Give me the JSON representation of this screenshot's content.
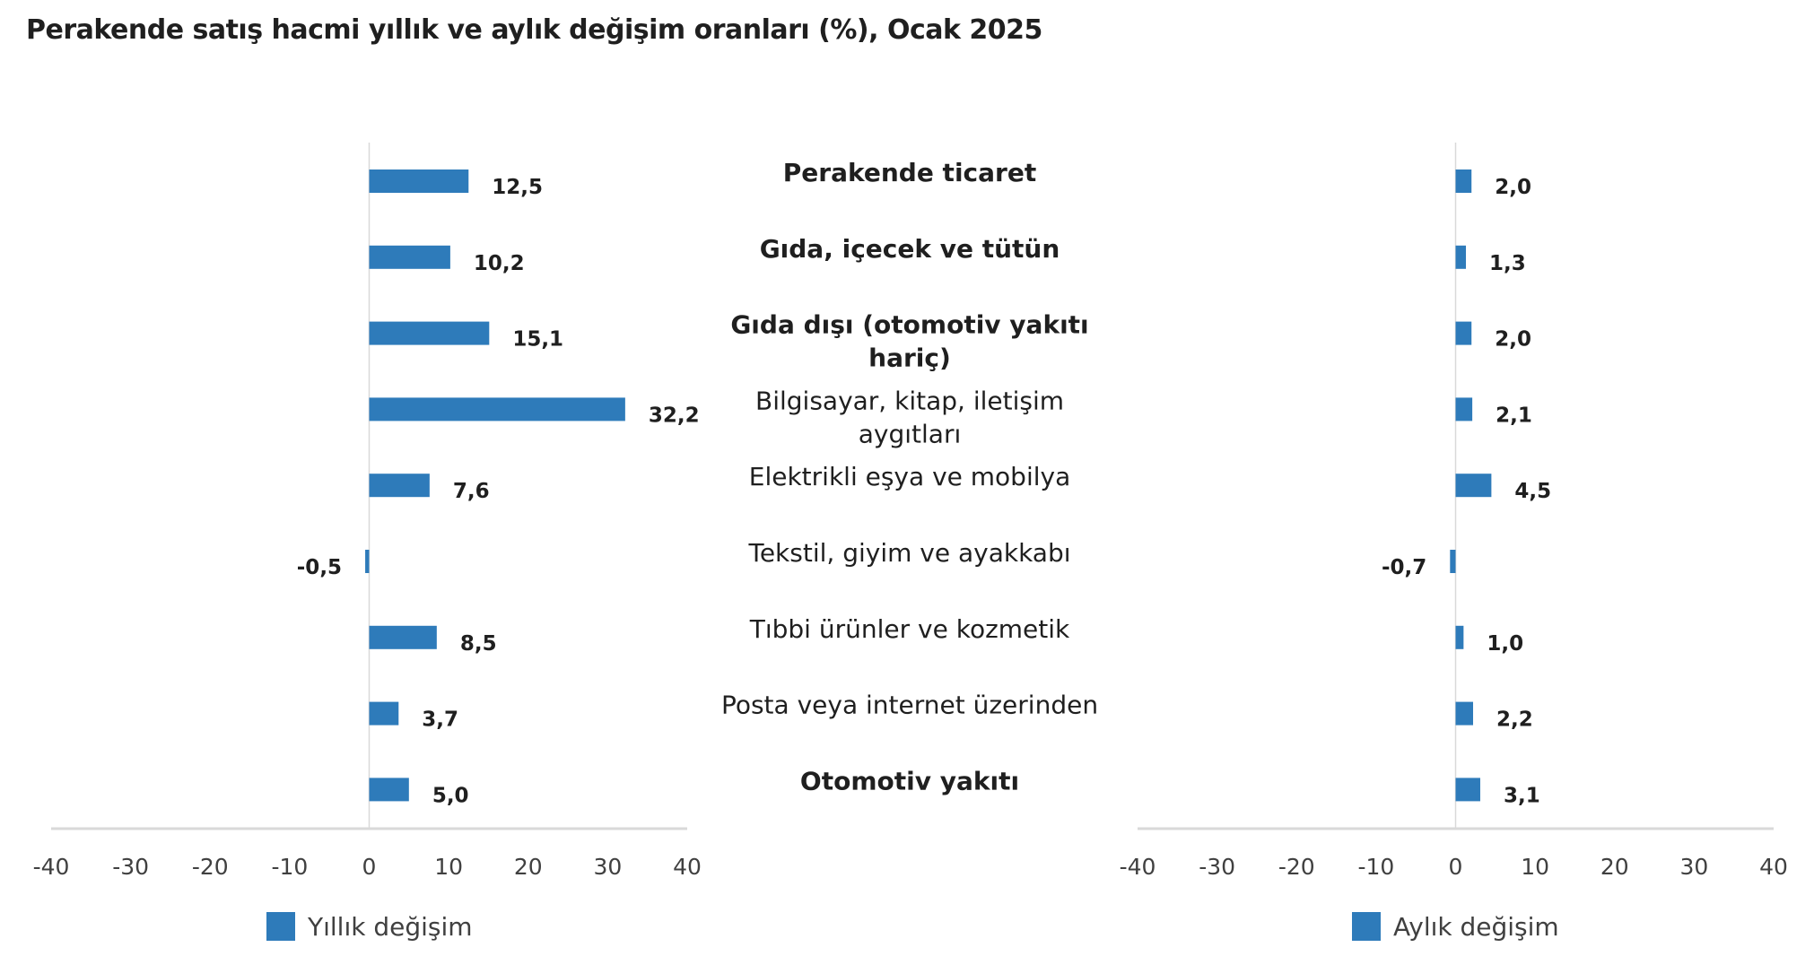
{
  "title": "Perakende satış hacmi yıllık ve aylık değişim oranları (%), Ocak 2025",
  "colors": {
    "bar": "#2E7BBA",
    "axis": "#d9d9d9"
  },
  "chart_data": [
    {
      "type": "bar",
      "orientation": "horizontal",
      "categories": [
        "Perakende ticaret",
        "Gıda, içecek ve tütün",
        "Gıda dışı (otomotiv yakıtı hariç)",
        "Bilgisayar, kitap, iletişim aygıtları",
        "Elektrikli eşya ve mobilya",
        "Tekstil, giyim ve ayakkabı",
        "Tıbbi ürünler ve kozmetik",
        "Posta veya internet üzerinden",
        "Otomotiv yakıtı"
      ],
      "category_lines": [
        [
          "Perakende ticaret"
        ],
        [
          "Gıda, içecek ve tütün"
        ],
        [
          "Gıda dışı (otomotiv yakıtı",
          "hariç)"
        ],
        [
          "Bilgisayar, kitap, iletişim",
          "aygıtları"
        ],
        [
          "Elektrikli eşya ve mobilya"
        ],
        [
          "Tekstil, giyim ve ayakkabı"
        ],
        [
          "Tıbbi ürünler ve kozmetik"
        ],
        [
          "Posta veya internet üzerinden"
        ],
        [
          "Otomotiv yakıtı"
        ]
      ],
      "bold_categories": [
        true,
        true,
        true,
        false,
        false,
        false,
        false,
        false,
        true
      ],
      "series": [
        {
          "name": "Yıllık değişim",
          "values": [
            12.5,
            10.2,
            15.1,
            32.2,
            7.6,
            -0.5,
            8.5,
            3.7,
            5.0
          ],
          "labels": [
            "12,5",
            "10,2",
            "15,1",
            "32,2",
            "7,6",
            "-0,5",
            "8,5",
            "3,7",
            "5,0"
          ]
        }
      ],
      "xlim": [
        -40,
        40
      ],
      "xticks": [
        "-40",
        "-30",
        "-20",
        "-10",
        "0",
        "10",
        "20",
        "30",
        "40"
      ],
      "legend": "bottom"
    },
    {
      "type": "bar",
      "orientation": "horizontal",
      "series": [
        {
          "name": "Aylık değişim",
          "values": [
            2.0,
            1.3,
            2.0,
            2.1,
            4.5,
            -0.7,
            1.0,
            2.2,
            3.1
          ],
          "labels": [
            "2,0",
            "1,3",
            "2,0",
            "2,1",
            "4,5",
            "-0,7",
            "1,0",
            "2,2",
            "3,1"
          ]
        }
      ],
      "xlim": [
        -40,
        40
      ],
      "xticks": [
        "-40",
        "-30",
        "-20",
        "-10",
        "0",
        "10",
        "20",
        "30",
        "40"
      ],
      "legend": "bottom"
    }
  ]
}
